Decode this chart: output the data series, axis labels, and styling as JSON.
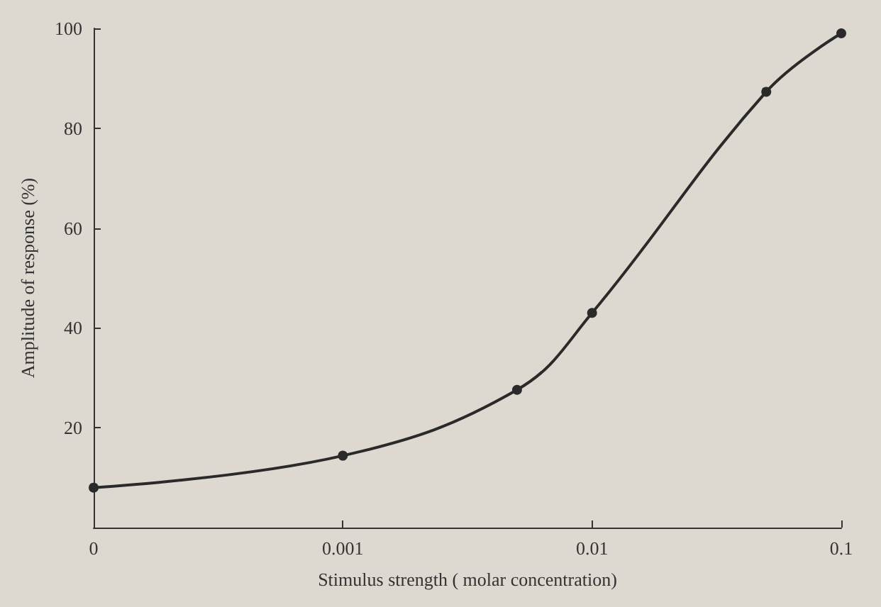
{
  "chart_data": {
    "type": "line",
    "xlabel": "Stimulus strength ( molar concentration)",
    "ylabel": "Amplitude of response (%)",
    "x": [
      0.0001,
      0.001,
      0.005,
      0.01,
      0.05,
      0.1
    ],
    "series": [
      {
        "color": "#2a2a2a",
        "values": [
          8,
          14.4,
          27.6,
          43,
          87.3,
          99
        ]
      }
    ],
    "log": "x",
    "xlim": [
      0.0001,
      0.1
    ],
    "xticks": [
      {
        "value": 0.0001,
        "label": "0"
      },
      0.001,
      0.01,
      0.1
    ],
    "ylim": [
      0,
      100
    ],
    "yticks": [
      20,
      40,
      60,
      80,
      100
    ],
    "marker": "circle",
    "line_style": "solid"
  }
}
